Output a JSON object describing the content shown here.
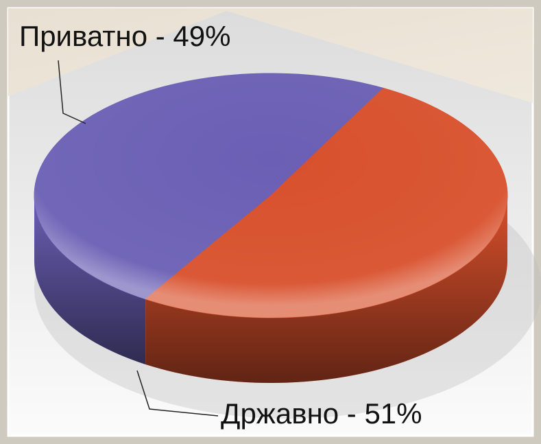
{
  "chart_data": {
    "type": "pie3d",
    "categories": [
      "Приватно - 49%",
      "Државно - 51%"
    ],
    "values": [
      49,
      51
    ],
    "colors": [
      "#6a5fb4",
      "#d8502c"
    ]
  }
}
